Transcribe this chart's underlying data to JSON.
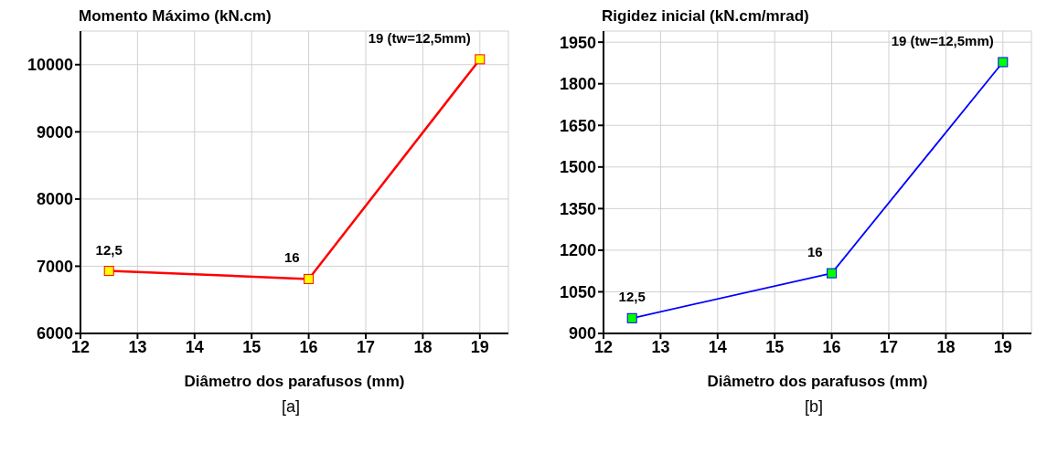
{
  "chart_data": [
    {
      "type": "line",
      "title": "Momento Máximo (kN.cm)",
      "xlabel": "Diâmetro dos parafusos (mm)",
      "x": [
        12.5,
        16,
        19
      ],
      "series": [
        {
          "color": "#ff0000",
          "values": [
            6930,
            6810,
            10080
          ]
        }
      ],
      "xlim": [
        12,
        19.5
      ],
      "xticks": [
        12,
        13,
        14,
        15,
        16,
        17,
        18,
        19
      ],
      "ylim": [
        6000,
        10500
      ],
      "yticks": [
        6000,
        7000,
        8000,
        9000,
        10000
      ],
      "grid": true,
      "legend": false,
      "marker": "square",
      "annotations": [
        {
          "text": "12,5",
          "x": 12.5,
          "y": 6930
        },
        {
          "text": "16",
          "x": 16,
          "y": 6810
        },
        {
          "text": "19 (tw=12,5mm)",
          "x": 19,
          "y": 10080
        },
        "[a]"
      ]
    },
    {
      "type": "line",
      "title": "Rigidez inicial (kN.cm/mrad)",
      "xlabel": "Diâmetro dos parafusos (mm)",
      "x": [
        12.5,
        16,
        19
      ],
      "series": [
        {
          "color": "#0000ff",
          "values": [
            955,
            1117,
            1878
          ]
        }
      ],
      "xlim": [
        12,
        19.5
      ],
      "xticks": [
        12,
        13,
        14,
        15,
        16,
        17,
        18,
        19
      ],
      "ylim": [
        900,
        1990
      ],
      "yticks": [
        900,
        1050,
        1200,
        1350,
        1500,
        1650,
        1800,
        1950
      ],
      "grid": true,
      "legend": false,
      "marker": "square",
      "annotations": [
        {
          "text": "12,5",
          "x": 12.5,
          "y": 955
        },
        {
          "text": "16",
          "x": 16,
          "y": 1117
        },
        {
          "text": "19 (tw=12,5mm)",
          "x": 19,
          "y": 1878
        },
        "[b]"
      ]
    }
  ]
}
